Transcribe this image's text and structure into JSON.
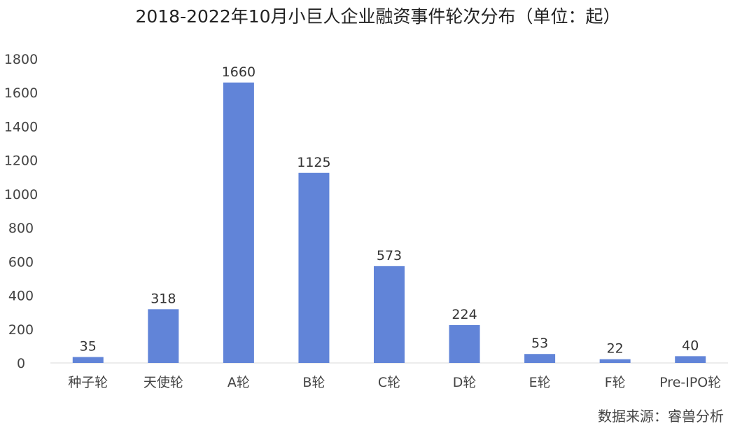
{
  "title": "2018-2022年10月小巨人企业融资事件轮次分布（单位：起）",
  "source": "数据来源：睿兽分析",
  "chart_data": {
    "type": "bar",
    "title": "2018-2022年10月小巨人企业融资事件轮次分布（单位：起）",
    "xlabel": "",
    "ylabel": "",
    "categories": [
      "种子轮",
      "天使轮",
      "A轮",
      "B轮",
      "C轮",
      "D轮",
      "E轮",
      "F轮",
      "Pre-IPO轮"
    ],
    "values": [
      35,
      318,
      1660,
      1125,
      573,
      224,
      53,
      22,
      40
    ],
    "ylim": [
      0,
      1800
    ],
    "yticks": [
      0,
      200,
      400,
      600,
      800,
      1000,
      1200,
      1400,
      1600,
      1800
    ],
    "bar_color": "#6184d8",
    "grid": false,
    "legend": "none"
  }
}
